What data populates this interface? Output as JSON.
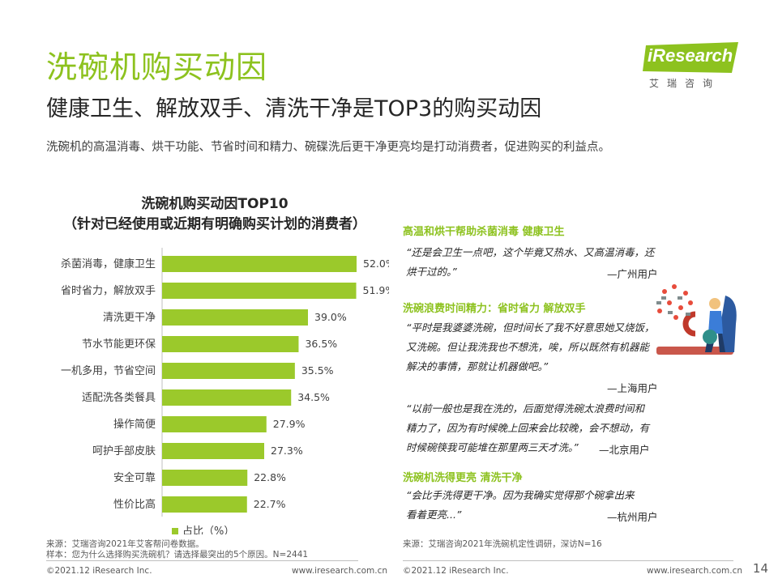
{
  "header": {
    "title": "洗碗机购买动因",
    "subtitle": "健康卫生、解放双手、清洗干净是TOP3的购买动因",
    "intro": "洗碗机的高温消毒、烘干功能、节省时间和精力、碗碟洗后更干净更亮均是打动消费者，促进购买的利益点。"
  },
  "logo": {
    "name": "iResearch",
    "tagline": "艾瑞咨询"
  },
  "chart_data": {
    "type": "bar",
    "orientation": "horizontal",
    "title": "洗碗机购买动因TOP10",
    "subtitle": "（针对已经使用或近期有明确购买计划的消费者）",
    "categories": [
      "杀菌消毒，健康卫生",
      "省时省力，解放双手",
      "清洗更干净",
      "节水节能更环保",
      "一机多用，节省空间",
      "适配洗各类餐具",
      "操作简便",
      "呵护手部皮肤",
      "安全可靠",
      "性价比高"
    ],
    "values": [
      52.0,
      51.9,
      39.0,
      36.5,
      35.5,
      34.5,
      27.9,
      27.3,
      22.8,
      22.7
    ],
    "value_labels": [
      "52.0%",
      "51.9%",
      "39.0%",
      "36.5%",
      "35.5%",
      "34.5%",
      "27.9%",
      "27.3%",
      "22.8%",
      "22.7%"
    ],
    "series_name": "占比（%）",
    "xlim": [
      0,
      60
    ],
    "color": "#9bc92b",
    "legend": "bottom"
  },
  "quotes": {
    "q1": {
      "heading": "高温和烘干帮助杀菌消毒 健康卫生",
      "line1": "“还是会卫生一点吧，这个毕竟又热水、又高温消毒，还",
      "line2": "烘干过的。”",
      "source": "—广州用户"
    },
    "q2": {
      "heading": "洗碗浪费时间精力：省时省力 解放双手",
      "line1": "“平时是我婆婆洗碗，但时间长了我不好意思她又烧饭，",
      "line2": "又洗碗。但让我洗我也不想洗，唉，所以既然有机器能",
      "line3": "解决的事情，那就让机器做吧。”",
      "source": "—上海用户"
    },
    "q3": {
      "line1": "“以前一般也是我在洗的，后面觉得洗碗太浪费时间和",
      "line2": "精力了，因为有时候晚上回来会比较晚，会不想动，有",
      "line3": "时候碗筷我可能堆在那里两三天才洗。”",
      "source": "—北京用户"
    },
    "q4": {
      "heading": "洗碗机洗得更亮 清洗干净",
      "line1": "“会比手洗得更干净。因为我确实觉得那个碗拿出来",
      "line2": "看着更亮...”",
      "source": "—杭州用户"
    }
  },
  "notes": {
    "left_source": "来源：艾瑞咨询2021年艾客帮问卷数据。",
    "left_sample": "样本：您为什么选择购买洗碗机？请选择最突出的5个原因。N=2441",
    "right_source": "来源：艾瑞咨询2021年洗碗机定性调研，深访N=16"
  },
  "footer": {
    "copyright_left": "©2021.12 iResearch Inc.",
    "url_left": "www.iresearch.com.cn",
    "copyright_right": "©2021.12 iResearch Inc.",
    "url_right": "www.iresearch.com.cn",
    "page": "14"
  },
  "colors": {
    "accent": "#8dc21f",
    "bar": "#9bc92b"
  }
}
